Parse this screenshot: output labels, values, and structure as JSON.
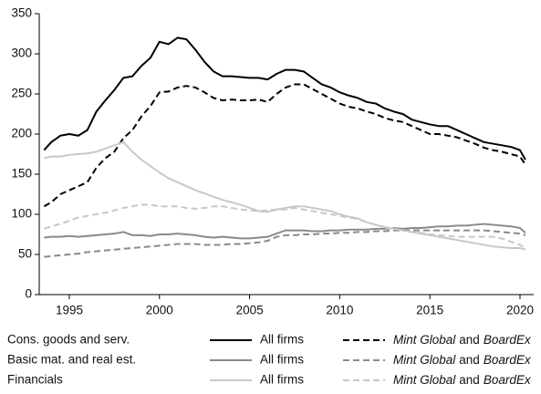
{
  "chart_data": {
    "type": "line",
    "x": [
      1993.6,
      1994,
      1994.5,
      1995,
      1995.5,
      1996,
      1996.5,
      1997,
      1997.5,
      1998,
      1998.5,
      1999,
      1999.5,
      2000,
      2000.5,
      2001,
      2001.5,
      2002,
      2002.5,
      2003,
      2003.5,
      2004,
      2004.5,
      2005,
      2005.5,
      2006,
      2006.5,
      2007,
      2007.5,
      2008,
      2008.5,
      2009,
      2009.5,
      2010,
      2010.5,
      2011,
      2011.5,
      2012,
      2012.5,
      2013,
      2013.5,
      2014,
      2014.5,
      2015,
      2015.5,
      2016,
      2016.5,
      2017,
      2017.5,
      2018,
      2018.5,
      2019,
      2019.5,
      2020,
      2020.3
    ],
    "groups": [
      "Cons. goods and serv.",
      "Basic mat. and real est.",
      "Financials"
    ],
    "series": [
      {
        "name": "All firms",
        "group": 0,
        "color": "#000000",
        "dashed": false,
        "values": [
          180,
          190,
          198,
          200,
          198,
          205,
          228,
          242,
          255,
          270,
          272,
          285,
          295,
          315,
          312,
          320,
          318,
          305,
          290,
          278,
          272,
          272,
          271,
          270,
          270,
          268,
          275,
          280,
          280,
          278,
          270,
          262,
          258,
          252,
          248,
          245,
          240,
          238,
          232,
          228,
          225,
          218,
          215,
          212,
          210,
          210,
          205,
          200,
          195,
          190,
          188,
          186,
          184,
          180,
          168
        ]
      },
      {
        "name": [
          {
            "text": "Mint Global",
            "italic": true
          },
          {
            "text": "and",
            "italic": false
          },
          {
            "text": "BoardEx",
            "italic": true
          }
        ],
        "group": 0,
        "color": "#000000",
        "dashed": true,
        "values": [
          110,
          115,
          125,
          130,
          135,
          140,
          158,
          170,
          178,
          195,
          205,
          222,
          235,
          252,
          253,
          258,
          260,
          258,
          252,
          245,
          242,
          243,
          242,
          242,
          243,
          240,
          250,
          258,
          262,
          262,
          256,
          250,
          244,
          238,
          234,
          232,
          228,
          225,
          220,
          217,
          215,
          210,
          205,
          200,
          200,
          198,
          196,
          192,
          188,
          183,
          180,
          178,
          175,
          172,
          162
        ]
      },
      {
        "name": "All firms",
        "group": 1,
        "color": "#8a8a8a",
        "dashed": false,
        "values": [
          71,
          72,
          72,
          73,
          72,
          73,
          74,
          75,
          76,
          78,
          74,
          74,
          73,
          75,
          75,
          76,
          75,
          74,
          72,
          71,
          72,
          71,
          70,
          70,
          71,
          72,
          76,
          80,
          80,
          80,
          79,
          79,
          80,
          80,
          81,
          81,
          81,
          82,
          82,
          83,
          82,
          83,
          83,
          84,
          85,
          85,
          86,
          86,
          87,
          88,
          87,
          86,
          85,
          83,
          77
        ]
      },
      {
        "name": [
          {
            "text": "Mint Global",
            "italic": true
          },
          {
            "text": "and",
            "italic": false
          },
          {
            "text": "BoardEx",
            "italic": true
          }
        ],
        "group": 1,
        "color": "#8a8a8a",
        "dashed": true,
        "values": [
          47,
          48,
          49,
          50,
          51,
          53,
          54,
          55,
          56,
          57,
          58,
          59,
          60,
          61,
          62,
          63,
          63,
          63,
          62,
          62,
          62,
          63,
          63,
          64,
          65,
          67,
          72,
          74,
          74,
          75,
          75,
          76,
          76,
          77,
          77,
          78,
          78,
          79,
          79,
          80,
          80,
          80,
          80,
          80,
          80,
          80,
          80,
          80,
          80,
          80,
          79,
          78,
          77,
          76,
          74
        ]
      },
      {
        "name": "All firms",
        "group": 2,
        "color": "#c8c8c8",
        "dashed": false,
        "values": [
          170,
          172,
          172,
          174,
          175,
          176,
          178,
          182,
          186,
          190,
          178,
          168,
          160,
          152,
          145,
          140,
          135,
          130,
          126,
          122,
          118,
          115,
          112,
          108,
          104,
          103,
          106,
          108,
          110,
          110,
          108,
          106,
          104,
          100,
          97,
          95,
          90,
          87,
          84,
          82,
          80,
          78,
          76,
          74,
          72,
          70,
          68,
          66,
          64,
          62,
          60,
          59,
          58,
          58,
          56
        ]
      },
      {
        "name": [
          {
            "text": "Mint Global",
            "italic": true
          },
          {
            "text": "and",
            "italic": false
          },
          {
            "text": "BoardEx",
            "italic": true
          }
        ],
        "group": 2,
        "color": "#c8c8c8",
        "dashed": true,
        "values": [
          82,
          85,
          88,
          92,
          96,
          98,
          100,
          102,
          105,
          108,
          110,
          112,
          112,
          110,
          110,
          110,
          108,
          107,
          108,
          110,
          110,
          108,
          106,
          105,
          104,
          105,
          106,
          106,
          108,
          106,
          104,
          102,
          100,
          98,
          96,
          94,
          90,
          87,
          84,
          82,
          80,
          78,
          77,
          75,
          74,
          73,
          72,
          72,
          72,
          72,
          72,
          70,
          66,
          62,
          58
        ]
      }
    ],
    "xlim": [
      1993.33,
      2020.76
    ],
    "xticks": [
      1995,
      2000,
      2005,
      2010,
      2015,
      2020
    ],
    "ylim": [
      0,
      350
    ],
    "yticks": [
      0,
      50,
      100,
      150,
      200,
      250,
      300,
      350
    ],
    "grid": false
  }
}
